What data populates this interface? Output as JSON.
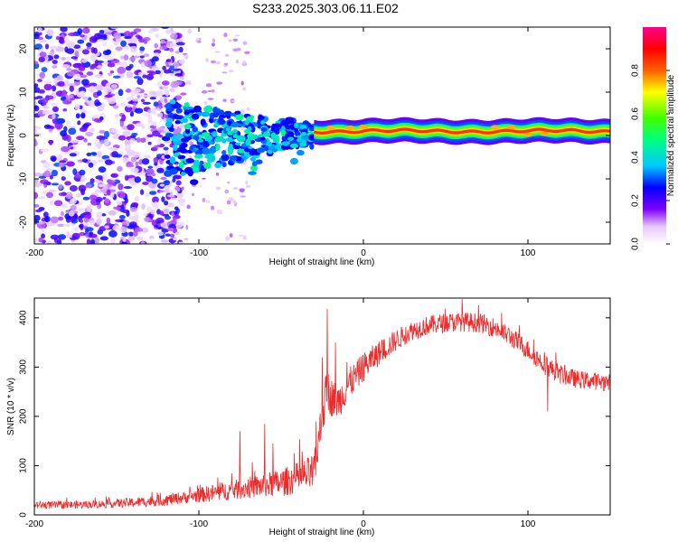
{
  "figure_title": "S233.2025.303.06.11.E02",
  "colors": {
    "snr_line": "#ee2a2a",
    "ridge": "#ee1133",
    "axis": "#000000"
  },
  "chart_data": [
    {
      "type": "heatmap",
      "title": "",
      "xlabel": "Height of straight line (km)",
      "ylabel": "Frequency (Hz)",
      "xlim": [
        -200,
        150
      ],
      "ylim": [
        -25,
        25
      ],
      "x_ticks": [
        -200,
        -100,
        0,
        100
      ],
      "y_ticks": [
        -20,
        -10,
        0,
        10,
        20
      ],
      "colorbar": {
        "label": "Normalized spectral amplitude",
        "range": [
          0,
          1
        ],
        "ticks": [
          0.0,
          0.2,
          0.4,
          0.6,
          0.8
        ],
        "tick_labels": [
          "0.0",
          "0.2",
          "0.4",
          "0.6",
          "0.8"
        ],
        "colormap": "rainbow (white-purple-blue-cyan-green-yellow-red-magenta)"
      },
      "ridge": {
        "description": "strong narrow-band signal near 1 Hz from ~-30 km to 150 km",
        "x_range": [
          -30,
          150
        ],
        "frequency_hz": 1,
        "amplitude": 0.85
      },
      "scatter_region": {
        "description": "diffuse low-amplitude purple blobs across full frequency range",
        "x_range": [
          -200,
          -120
        ],
        "frequency_range": [
          -25,
          25
        ],
        "amplitude_range": [
          0.05,
          0.3
        ]
      },
      "transition_cluster": {
        "x_range": [
          -120,
          -30
        ],
        "frequency_range": [
          -15,
          8
        ],
        "amplitude_range": [
          0.25,
          0.5
        ]
      }
    },
    {
      "type": "line",
      "title": "",
      "xlabel": "Height of straight line (km)",
      "ylabel": "SNR (10 * v/v)",
      "xlim": [
        -200,
        150
      ],
      "ylim": [
        0,
        440
      ],
      "x_ticks": [
        -200,
        -100,
        0,
        100
      ],
      "y_ticks": [
        0,
        100,
        200,
        300,
        400
      ],
      "series": [
        {
          "name": "SNR",
          "x": [
            -200,
            -180,
            -160,
            -140,
            -120,
            -110,
            -100,
            -90,
            -80,
            -70,
            -60,
            -50,
            -45,
            -40,
            -35,
            -30,
            -25,
            -22,
            -20,
            -15,
            -10,
            -5,
            0,
            5,
            10,
            20,
            30,
            40,
            50,
            60,
            70,
            80,
            90,
            100,
            110,
            120,
            130,
            140,
            150
          ],
          "mean": [
            20,
            20,
            22,
            25,
            30,
            35,
            40,
            45,
            50,
            55,
            60,
            65,
            70,
            75,
            80,
            85,
            200,
            260,
            240,
            230,
            260,
            280,
            300,
            315,
            330,
            355,
            375,
            385,
            390,
            392,
            390,
            380,
            360,
            335,
            305,
            285,
            275,
            272,
            268
          ],
          "noise": [
            8,
            8,
            8,
            10,
            12,
            12,
            15,
            18,
            20,
            22,
            25,
            28,
            30,
            32,
            35,
            40,
            45,
            45,
            40,
            35,
            35,
            30,
            30,
            28,
            25,
            22,
            20,
            20,
            20,
            20,
            20,
            20,
            20,
            20,
            20,
            20,
            18,
            18,
            18
          ],
          "spikes": [
            [
              -75,
              170
            ],
            [
              -60,
              185
            ],
            [
              -55,
              145
            ],
            [
              -22,
              418
            ],
            [
              -25,
              320
            ],
            [
              -17,
              350
            ],
            [
              -10,
              310
            ],
            [
              60,
              438
            ],
            [
              88,
              378
            ],
            [
              110,
              330
            ],
            [
              112,
              210
            ]
          ]
        }
      ]
    }
  ]
}
